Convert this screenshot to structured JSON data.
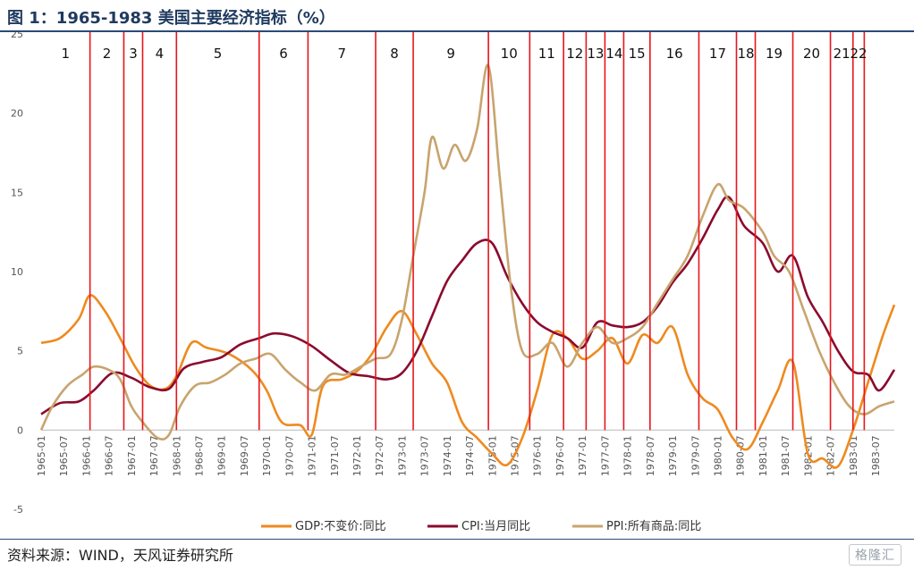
{
  "header": {
    "title": "图 1：1965-1983 美国主要经济指标（%）"
  },
  "footer": {
    "source": "资料来源：WIND，天风证券研究所",
    "watermark": "格隆汇"
  },
  "chart_data": {
    "type": "line",
    "title": "图 1：1965-1983 美国主要经济指标（%）",
    "ylim": [
      -5,
      25
    ],
    "yticks": [
      -5,
      0,
      5,
      10,
      15,
      20,
      25
    ],
    "xlim": [
      "1965-01",
      "1983-12"
    ],
    "xticks": [
      "1965-01",
      "1965-07",
      "1966-01",
      "1966-07",
      "1967-01",
      "1967-07",
      "1968-01",
      "1968-07",
      "1969-01",
      "1969-07",
      "1970-01",
      "1970-07",
      "1971-01",
      "1971-07",
      "1972-01",
      "1972-07",
      "1973-01",
      "1973-07",
      "1974-01",
      "1974-07",
      "1975-01",
      "1975-07",
      "1976-01",
      "1976-07",
      "1977-01",
      "1977-07",
      "1978-01",
      "1978-07",
      "1979-01",
      "1979-07",
      "1980-01",
      "1980-07",
      "1981-01",
      "1981-07",
      "1982-01",
      "1982-07",
      "1983-01",
      "1983-07"
    ],
    "legend_position": "bottom",
    "colors": {
      "gdp": "#ee8a1f",
      "cpi": "#8b0a2e",
      "ppi": "#c8a46e",
      "divider": "#e8151b"
    },
    "period_labels": [
      "1",
      "2",
      "3",
      "4",
      "5",
      "6",
      "7",
      "8",
      "9",
      "10",
      "11",
      "12",
      "13",
      "14",
      "15",
      "16",
      "17",
      "18",
      "19",
      "20",
      "21",
      "22"
    ],
    "dividers": [
      "1966-02",
      "1966-11",
      "1967-04",
      "1968-01",
      "1969-11",
      "1970-12",
      "1972-06",
      "1973-04",
      "1974-12",
      "1975-11",
      "1976-08",
      "1977-02",
      "1977-07",
      "1977-12",
      "1978-07",
      "1979-08",
      "1980-06",
      "1980-11",
      "1981-09",
      "1982-07",
      "1983-01",
      "1983-04"
    ],
    "series": [
      {
        "name": "GDP:不变价:同比",
        "key": "gdp",
        "x": [
          "1965-01",
          "1965-06",
          "1965-11",
          "1966-02",
          "1966-06",
          "1966-10",
          "1967-02",
          "1967-06",
          "1967-10",
          "1968-01",
          "1968-05",
          "1968-09",
          "1969-03",
          "1969-09",
          "1970-01",
          "1970-05",
          "1970-10",
          "1971-01",
          "1971-04",
          "1971-09",
          "1972-01",
          "1972-05",
          "1972-09",
          "1973-01",
          "1973-05",
          "1973-09",
          "1974-01",
          "1974-05",
          "1974-09",
          "1975-01",
          "1975-05",
          "1975-09",
          "1976-01",
          "1976-05",
          "1976-09",
          "1977-01",
          "1977-05",
          "1977-09",
          "1978-01",
          "1978-05",
          "1978-09",
          "1979-01",
          "1979-05",
          "1979-09",
          "1980-01",
          "1980-05",
          "1980-09",
          "1981-01",
          "1981-05",
          "1981-09",
          "1982-01",
          "1982-05",
          "1982-09",
          "1983-01",
          "1983-05",
          "1983-09",
          "1983-12"
        ],
        "values": [
          5.5,
          5.8,
          7.0,
          8.5,
          7.5,
          5.8,
          4.0,
          2.8,
          2.6,
          3.4,
          5.5,
          5.2,
          4.8,
          3.8,
          2.5,
          0.5,
          0.3,
          -0.3,
          2.8,
          3.2,
          3.7,
          4.8,
          6.5,
          7.5,
          6.0,
          4.2,
          3.0,
          0.5,
          -0.5,
          -1.5,
          -2.2,
          -0.5,
          2.5,
          6.0,
          5.8,
          4.5,
          5.0,
          5.8,
          4.2,
          6.0,
          5.5,
          6.5,
          3.5,
          2.0,
          1.3,
          -0.5,
          -1.2,
          0.5,
          2.5,
          4.3,
          -1.5,
          -1.8,
          -2.3,
          0.0,
          3.0,
          6.0,
          7.9
        ]
      },
      {
        "name": "CPI:当月同比",
        "key": "cpi",
        "x": [
          "1965-01",
          "1965-06",
          "1965-11",
          "1966-03",
          "1966-08",
          "1967-01",
          "1967-06",
          "1967-11",
          "1968-03",
          "1968-08",
          "1969-01",
          "1969-06",
          "1969-11",
          "1970-03",
          "1970-08",
          "1971-01",
          "1971-06",
          "1971-11",
          "1972-04",
          "1972-09",
          "1973-01",
          "1973-05",
          "1973-09",
          "1974-01",
          "1974-05",
          "1974-09",
          "1975-01",
          "1975-05",
          "1975-09",
          "1976-01",
          "1976-05",
          "1976-09",
          "1977-01",
          "1977-05",
          "1977-09",
          "1978-01",
          "1978-05",
          "1978-09",
          "1979-01",
          "1979-05",
          "1979-09",
          "1980-01",
          "1980-04",
          "1980-08",
          "1981-01",
          "1981-05",
          "1981-09",
          "1982-01",
          "1982-05",
          "1982-09",
          "1983-01",
          "1983-05",
          "1983-08",
          "1983-12"
        ],
        "values": [
          1.0,
          1.7,
          1.8,
          2.5,
          3.6,
          3.3,
          2.7,
          2.6,
          3.9,
          4.3,
          4.6,
          5.4,
          5.8,
          6.1,
          5.9,
          5.3,
          4.4,
          3.6,
          3.4,
          3.2,
          3.6,
          5.0,
          7.2,
          9.4,
          10.7,
          11.8,
          11.8,
          9.7,
          8.0,
          6.8,
          6.2,
          5.8,
          5.2,
          6.8,
          6.6,
          6.5,
          6.8,
          7.8,
          9.3,
          10.5,
          12.1,
          13.9,
          14.7,
          12.9,
          11.8,
          10.0,
          11.0,
          8.4,
          6.8,
          5.0,
          3.7,
          3.5,
          2.5,
          3.8
        ]
      },
      {
        "name": "PPI:所有商品:同比",
        "key": "ppi",
        "x": [
          "1965-01",
          "1965-04",
          "1965-08",
          "1965-12",
          "1966-03",
          "1966-07",
          "1966-10",
          "1967-01",
          "1967-04",
          "1967-08",
          "1967-11",
          "1968-02",
          "1968-06",
          "1968-10",
          "1969-02",
          "1969-06",
          "1969-10",
          "1970-02",
          "1970-06",
          "1970-10",
          "1971-02",
          "1971-06",
          "1971-10",
          "1972-02",
          "1972-06",
          "1972-10",
          "1973-01",
          "1973-04",
          "1973-07",
          "1973-09",
          "1973-12",
          "1974-03",
          "1974-06",
          "1974-09",
          "1974-12",
          "1975-03",
          "1975-06",
          "1975-09",
          "1976-01",
          "1976-05",
          "1976-09",
          "1977-01",
          "1977-05",
          "1977-09",
          "1978-01",
          "1978-05",
          "1978-09",
          "1979-01",
          "1979-05",
          "1979-09",
          "1980-01",
          "1980-04",
          "1980-08",
          "1981-01",
          "1981-04",
          "1981-08",
          "1981-12",
          "1982-04",
          "1982-08",
          "1982-12",
          "1983-04",
          "1983-08",
          "1983-12"
        ],
        "values": [
          0.0,
          1.5,
          2.8,
          3.5,
          4.0,
          3.8,
          3.2,
          1.5,
          0.5,
          -0.5,
          -0.3,
          1.5,
          2.8,
          3.0,
          3.5,
          4.2,
          4.5,
          4.8,
          3.8,
          3.0,
          2.5,
          3.5,
          3.5,
          4.0,
          4.5,
          4.8,
          7.0,
          11.0,
          15.0,
          18.5,
          16.5,
          18.0,
          17.0,
          19.0,
          23.0,
          16.0,
          9.0,
          5.0,
          4.8,
          5.5,
          4.0,
          5.5,
          6.5,
          5.5,
          5.8,
          6.5,
          8.0,
          9.5,
          11.0,
          13.5,
          15.5,
          14.5,
          14.0,
          12.5,
          11.0,
          10.0,
          7.5,
          5.0,
          3.0,
          1.5,
          1.0,
          1.5,
          1.8
        ]
      }
    ]
  }
}
